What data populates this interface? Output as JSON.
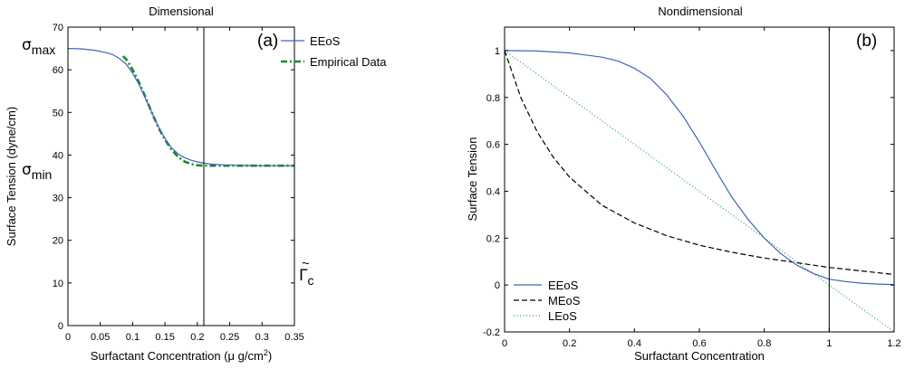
{
  "chart_data": [
    {
      "type": "line",
      "title": "Dimensional",
      "panel_label": "(a)",
      "xlabel_main": "Surfactant Concentration (μ g/cm",
      "xlabel_sup": "2",
      "xlabel_end": ")",
      "ylabel": "Surface Tension (dyne/cm)",
      "xlim": [
        0,
        0.35
      ],
      "ylim": [
        0,
        70
      ],
      "xticks": [
        "0",
        "0.05",
        "0.1",
        "0.15",
        "0.2",
        "0.25",
        "0.3",
        "0.35"
      ],
      "yticks": [
        "0",
        "10",
        "20",
        "30",
        "40",
        "50",
        "60",
        "70"
      ],
      "legend_position": "top-right",
      "annotations": {
        "sigma_max": {
          "symbol": "σ",
          "sub": "max",
          "value": 65
        },
        "sigma_min": {
          "symbol": "σ",
          "sub": "min",
          "value": 37.5
        },
        "gamma_c": {
          "symbol": "Γ",
          "accent": "~",
          "sub": "c",
          "x": 0.21
        }
      },
      "series": [
        {
          "name": "EEoS",
          "color": "#4463b3",
          "style": "solid",
          "x": [
            0,
            0.02,
            0.04,
            0.06,
            0.07,
            0.08,
            0.09,
            0.1,
            0.11,
            0.12,
            0.13,
            0.14,
            0.15,
            0.16,
            0.17,
            0.18,
            0.19,
            0.2,
            0.21,
            0.22,
            0.24,
            0.26,
            0.28,
            0.3,
            0.32,
            0.35
          ],
          "y": [
            65,
            64.9,
            64.6,
            64,
            63.5,
            62.6,
            61.3,
            59.2,
            56.5,
            53.2,
            49.8,
            46.6,
            43.9,
            41.7,
            40.3,
            39.4,
            38.8,
            38.4,
            38.1,
            37.9,
            37.7,
            37.6,
            37.55,
            37.5,
            37.5,
            37.5
          ]
        },
        {
          "name": "Empirical Data",
          "color": "#1a8a2a",
          "style": "dashdot",
          "x": [
            0.085,
            0.09,
            0.1,
            0.11,
            0.12,
            0.13,
            0.14,
            0.15,
            0.16,
            0.17,
            0.18,
            0.19,
            0.2,
            0.21,
            0.22,
            0.25,
            0.3,
            0.35
          ],
          "y": [
            63.2,
            62.5,
            60.0,
            57.0,
            53.5,
            49.8,
            46.4,
            43.6,
            41.3,
            39.6,
            38.5,
            37.9,
            37.6,
            37.5,
            37.5,
            37.5,
            37.5,
            37.5
          ]
        }
      ]
    },
    {
      "type": "line",
      "title": "Nondimensional",
      "panel_label": "(b)",
      "xlabel": "Surfactant Concentration",
      "ylabel": "Surface Tension",
      "xlim": [
        0,
        1.2
      ],
      "ylim": [
        -0.2,
        1.1
      ],
      "xticks": [
        "0",
        "0.2",
        "0.4",
        "0.6",
        "0.8",
        "1",
        "1.2"
      ],
      "yticks": [
        "-0.2",
        "0",
        "0.2",
        "0.4",
        "0.6",
        "0.8",
        "1"
      ],
      "vline_x": 1,
      "legend_position": "bottom-left",
      "series": [
        {
          "name": "EEoS",
          "color": "#4463b3",
          "style": "solid",
          "x": [
            0,
            0.1,
            0.2,
            0.3,
            0.35,
            0.4,
            0.45,
            0.5,
            0.55,
            0.6,
            0.65,
            0.7,
            0.75,
            0.8,
            0.85,
            0.9,
            0.95,
            1.0,
            1.05,
            1.1,
            1.15,
            1.2
          ],
          "y": [
            1.0,
            0.998,
            0.99,
            0.972,
            0.955,
            0.925,
            0.88,
            0.81,
            0.72,
            0.61,
            0.49,
            0.375,
            0.28,
            0.2,
            0.135,
            0.085,
            0.05,
            0.025,
            0.015,
            0.008,
            0.004,
            0.002
          ]
        },
        {
          "name": "MEoS",
          "color": "#000000",
          "style": "dashed",
          "x": [
            0,
            0.05,
            0.1,
            0.15,
            0.2,
            0.3,
            0.4,
            0.5,
            0.6,
            0.7,
            0.8,
            0.9,
            1.0,
            1.1,
            1.2
          ],
          "y": [
            1.0,
            0.8,
            0.655,
            0.545,
            0.46,
            0.34,
            0.265,
            0.21,
            0.17,
            0.14,
            0.115,
            0.095,
            0.075,
            0.06,
            0.045
          ]
        },
        {
          "name": "LEoS",
          "color": "#2aa14a",
          "style": "dotted",
          "x": [
            0,
            1.2
          ],
          "y": [
            1.0,
            -0.2
          ]
        }
      ]
    }
  ]
}
